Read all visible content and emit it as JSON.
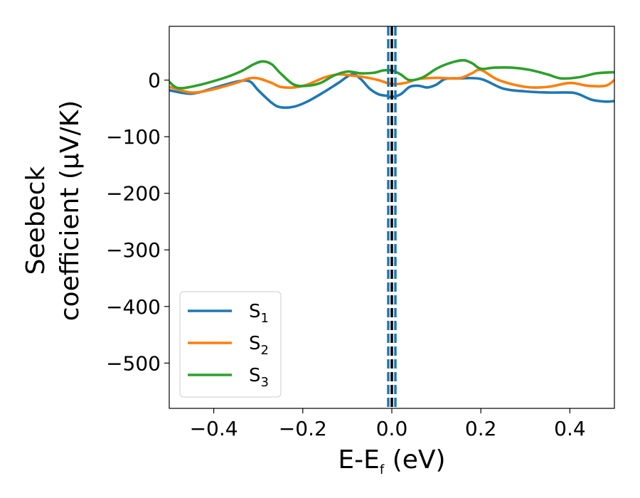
{
  "chart_data": {
    "type": "line",
    "xlabel": {
      "main": "E-E",
      "sub": "f",
      "unit": " (eV)"
    },
    "ylabel": {
      "line1": "Seebeck",
      "line2": "coefficient  (μV/K)"
    },
    "xlim": [
      -0.5,
      0.5
    ],
    "ylim": [
      -580,
      95
    ],
    "xticks": [
      -0.4,
      -0.2,
      0.0,
      0.2,
      0.4
    ],
    "xtick_labels": [
      "−0.4",
      "−0.2",
      "0.0",
      "0.2",
      "0.4"
    ],
    "yticks": [
      0,
      -100,
      -200,
      -300,
      -400,
      -500
    ],
    "ytick_labels": [
      "0",
      "−100",
      "−200",
      "−300",
      "−400",
      "−500"
    ],
    "grid": false,
    "legend_position": "lower-left",
    "series": [
      {
        "name": "S",
        "sub": "1",
        "color": "#1f77b4",
        "x": [
          -0.5,
          -0.45,
          -0.4,
          -0.35,
          -0.32,
          -0.3,
          -0.27,
          -0.25,
          -0.22,
          -0.19,
          -0.15,
          -0.12,
          -0.09,
          -0.07,
          -0.05,
          -0.03,
          -0.01,
          0.0,
          0.02,
          0.04,
          0.06,
          0.08,
          0.1,
          0.12,
          0.15,
          0.2,
          0.25,
          0.3,
          0.35,
          0.4,
          0.42,
          0.45,
          0.48,
          0.5
        ],
        "y": [
          -18,
          -24,
          -14,
          -3,
          -2,
          -18,
          -40,
          -48,
          -47,
          -38,
          -20,
          -5,
          10,
          2,
          -15,
          -25,
          -28,
          -30,
          -25,
          -12,
          -10,
          -13,
          -8,
          2,
          3,
          2,
          -15,
          -20,
          -22,
          -22,
          -25,
          -35,
          -38,
          -37
        ]
      },
      {
        "name": "S",
        "sub": "2",
        "color": "#ff7f0e",
        "x": [
          -0.5,
          -0.45,
          -0.4,
          -0.35,
          -0.32,
          -0.3,
          -0.27,
          -0.25,
          -0.22,
          -0.19,
          -0.15,
          -0.12,
          -0.09,
          -0.06,
          -0.03,
          0.0,
          0.03,
          0.06,
          0.1,
          0.15,
          0.18,
          0.2,
          0.24,
          0.3,
          0.35,
          0.4,
          0.44,
          0.48,
          0.5
        ],
        "y": [
          -12,
          -22,
          -16,
          -5,
          3,
          3,
          -5,
          -12,
          -13,
          -8,
          5,
          10,
          8,
          5,
          0,
          -7,
          -5,
          2,
          4,
          3,
          12,
          18,
          0,
          -12,
          -12,
          -5,
          -10,
          -10,
          0
        ]
      },
      {
        "name": "S",
        "sub": "3",
        "color": "#2ca02c",
        "x": [
          -0.5,
          -0.48,
          -0.44,
          -0.38,
          -0.34,
          -0.31,
          -0.29,
          -0.27,
          -0.25,
          -0.22,
          -0.19,
          -0.16,
          -0.13,
          -0.1,
          -0.07,
          -0.04,
          -0.02,
          0.0,
          0.02,
          0.04,
          0.07,
          0.1,
          0.13,
          0.16,
          0.18,
          0.2,
          0.23,
          0.27,
          0.31,
          0.35,
          0.38,
          0.42,
          0.46,
          0.5
        ],
        "y": [
          -3,
          -14,
          -10,
          3,
          15,
          28,
          33,
          28,
          12,
          -8,
          -10,
          -5,
          8,
          15,
          12,
          13,
          17,
          17,
          10,
          0,
          5,
          20,
          30,
          35,
          30,
          20,
          22,
          22,
          18,
          10,
          3,
          5,
          12,
          14
        ]
      }
    ],
    "vlines": [
      {
        "x": 0.0,
        "color": "#000000",
        "style": "dashed"
      },
      {
        "x": -0.008,
        "color": "#1f77b4",
        "style": "dashed"
      },
      {
        "x": 0.008,
        "color": "#1f77b4",
        "style": "dashed"
      }
    ]
  }
}
